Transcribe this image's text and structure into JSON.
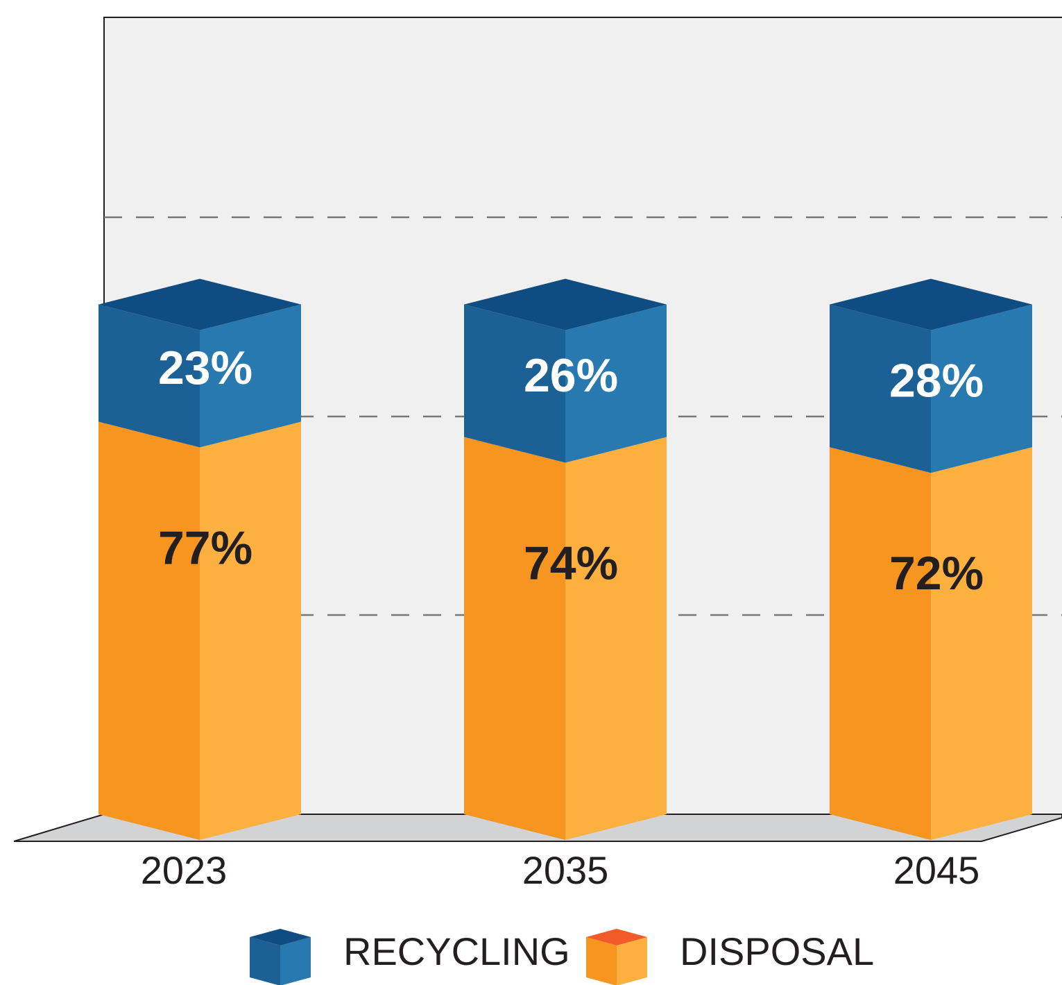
{
  "chart_data": {
    "type": "bar3d_stacked",
    "categories": [
      "2023",
      "2035",
      "2045"
    ],
    "series": [
      {
        "name": "DISPOSAL",
        "color": "#f6951f",
        "light_color": "#fbb040",
        "top_color": "#f15a29",
        "label_color": "#231f20",
        "values": [
          77,
          74,
          72
        ],
        "value_labels": [
          "77%",
          "74%",
          "72%"
        ]
      },
      {
        "name": "RECYCLING",
        "color": "#1c6196",
        "light_color": "#2779b0",
        "top_color": "#0f4c81",
        "label_color": "#ffffff",
        "values": [
          23,
          26,
          28
        ],
        "value_labels": [
          "23%",
          "26%",
          "28%"
        ]
      }
    ],
    "ylim": [
      0,
      125
    ]
  }
}
